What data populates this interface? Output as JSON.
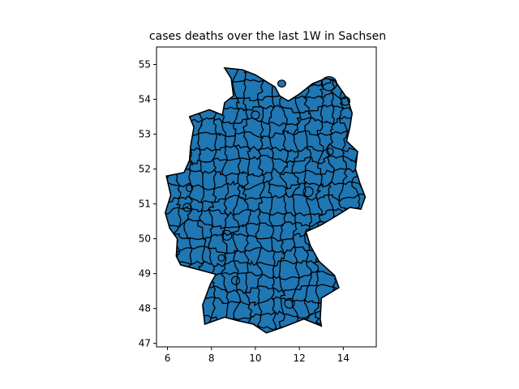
{
  "title": "cases deaths over the last 1W in Sachsen",
  "map": {
    "region": "Germany",
    "fill_color": "#1f77b4",
    "border_color": "#000000",
    "x_range": [
      5.5,
      15.5
    ],
    "y_range": [
      46.9,
      55.5
    ],
    "x_ticks": [
      6,
      8,
      10,
      12,
      14
    ],
    "y_ticks": [
      47,
      48,
      49,
      50,
      51,
      52,
      53,
      54,
      55
    ]
  },
  "chart_data": {
    "type": "map",
    "title": "cases deaths over the last 1W in Sachsen",
    "xlabel": "",
    "ylabel": "",
    "xlim": [
      5.5,
      15.5
    ],
    "ylim": [
      46.9,
      55.5
    ],
    "x_ticks": [
      "6",
      "8",
      "10",
      "12",
      "14"
    ],
    "y_ticks": [
      "47",
      "48",
      "49",
      "50",
      "51",
      "52",
      "53",
      "54",
      "55"
    ],
    "outline": [
      [
        8.9,
        54.6
      ],
      [
        8.6,
        54.9
      ],
      [
        9.4,
        54.85
      ],
      [
        10.0,
        54.7
      ],
      [
        10.9,
        54.35
      ],
      [
        11.1,
        54.1
      ],
      [
        11.5,
        53.95
      ],
      [
        12.0,
        54.15
      ],
      [
        12.6,
        54.45
      ],
      [
        13.2,
        54.6
      ],
      [
        13.6,
        54.55
      ],
      [
        14.2,
        54.0
      ],
      [
        14.4,
        53.6
      ],
      [
        14.3,
        53.2
      ],
      [
        14.15,
        52.8
      ],
      [
        14.65,
        52.5
      ],
      [
        14.55,
        52.0
      ],
      [
        14.75,
        51.6
      ],
      [
        15.0,
        51.2
      ],
      [
        14.8,
        50.85
      ],
      [
        14.3,
        50.9
      ],
      [
        13.8,
        50.7
      ],
      [
        13.0,
        50.4
      ],
      [
        12.3,
        50.2
      ],
      [
        12.5,
        49.8
      ],
      [
        12.9,
        49.35
      ],
      [
        13.6,
        48.95
      ],
      [
        13.8,
        48.6
      ],
      [
        13.0,
        48.3
      ],
      [
        12.95,
        47.7
      ],
      [
        13.0,
        47.5
      ],
      [
        12.2,
        47.7
      ],
      [
        11.2,
        47.45
      ],
      [
        10.5,
        47.3
      ],
      [
        9.9,
        47.55
      ],
      [
        9.2,
        47.65
      ],
      [
        8.6,
        47.75
      ],
      [
        7.7,
        47.55
      ],
      [
        7.6,
        48.1
      ],
      [
        7.95,
        48.7
      ],
      [
        8.2,
        48.98
      ],
      [
        7.5,
        49.1
      ],
      [
        6.6,
        49.25
      ],
      [
        6.4,
        49.5
      ],
      [
        6.45,
        50.0
      ],
      [
        6.1,
        50.3
      ],
      [
        5.9,
        50.75
      ],
      [
        6.15,
        51.25
      ],
      [
        5.95,
        51.8
      ],
      [
        6.75,
        51.9
      ],
      [
        7.0,
        52.25
      ],
      [
        7.05,
        52.65
      ],
      [
        7.2,
        53.2
      ],
      [
        7.0,
        53.5
      ],
      [
        7.9,
        53.7
      ],
      [
        8.5,
        53.55
      ],
      [
        8.6,
        53.9
      ],
      [
        9.0,
        54.1
      ]
    ]
  }
}
